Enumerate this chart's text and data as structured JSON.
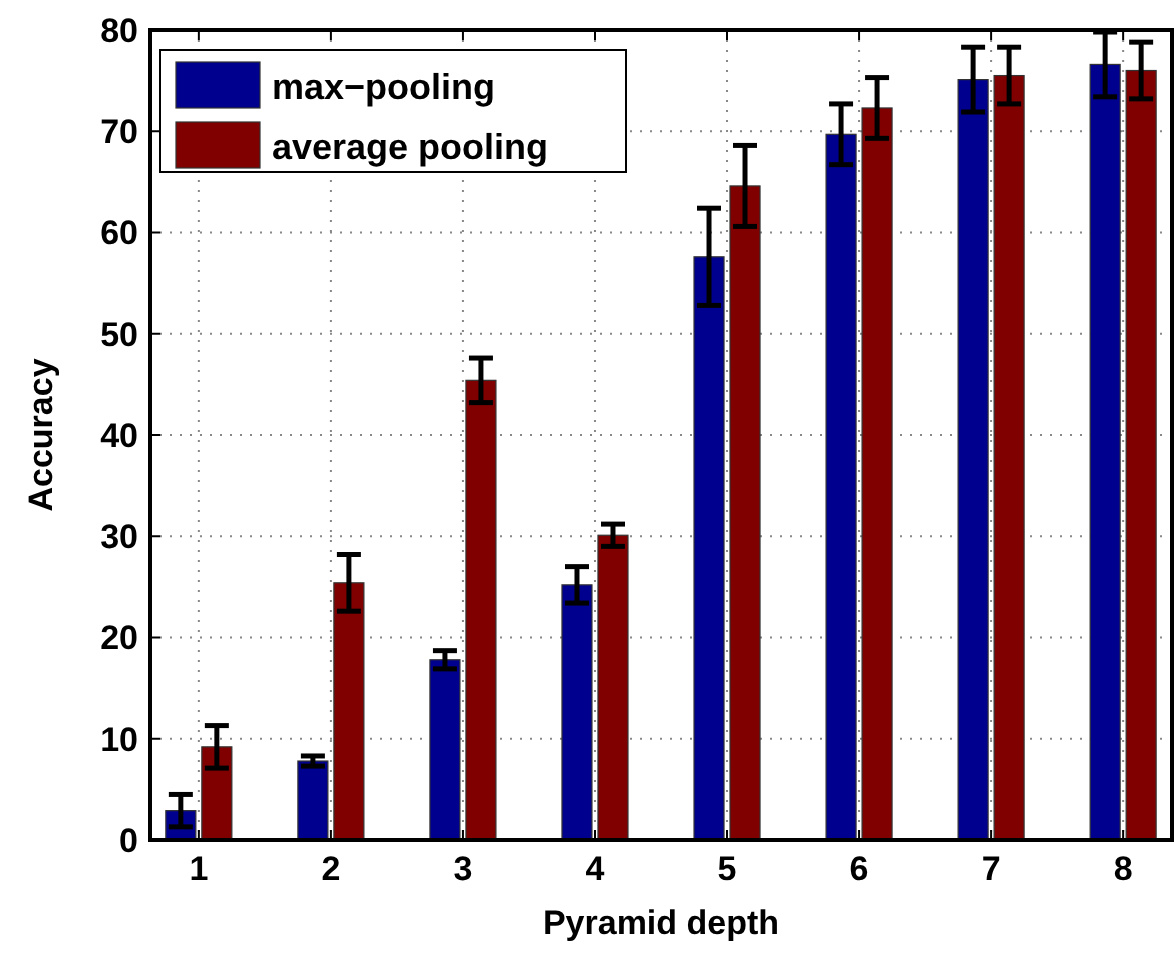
{
  "chart_data": {
    "type": "bar",
    "xlabel": "Pyramid depth",
    "ylabel": "Accuracy",
    "categories": [
      "1",
      "2",
      "3",
      "4",
      "5",
      "6",
      "7",
      "8"
    ],
    "series": [
      {
        "name": "max−pooling",
        "color": "#00008f",
        "values": [
          2.9,
          7.8,
          17.8,
          25.2,
          57.6,
          69.7,
          75.1,
          76.6
        ],
        "errors": [
          1.6,
          0.5,
          0.9,
          1.8,
          4.8,
          3,
          3.2,
          3.2
        ]
      },
      {
        "name": "average pooling",
        "color": "#800000",
        "values": [
          9.2,
          25.4,
          45.4,
          30.1,
          64.6,
          72.3,
          75.5,
          76.0
        ],
        "errors": [
          2.1,
          2.8,
          2.2,
          1.1,
          4,
          3,
          2.8,
          2.8
        ]
      }
    ],
    "ylim": [
      0,
      80
    ],
    "yticks": [
      0,
      10,
      20,
      30,
      40,
      50,
      60,
      70,
      80
    ],
    "grid": true,
    "legend": "top left"
  }
}
